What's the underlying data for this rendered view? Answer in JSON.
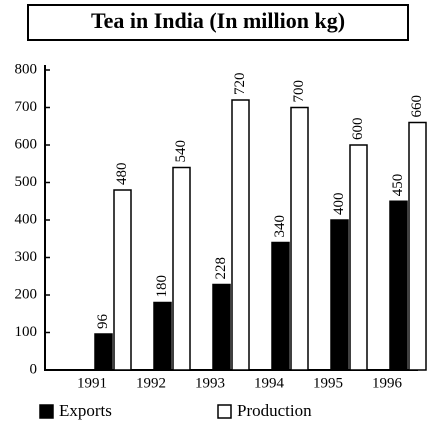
{
  "chart_data": {
    "type": "bar",
    "title": "Tea in India (In million kg)",
    "categories": [
      "1991",
      "1992",
      "1993",
      "1994",
      "1995",
      "1996"
    ],
    "series": [
      {
        "name": "Exports",
        "color": "#000000",
        "values": [
          96,
          180,
          228,
          340,
          400,
          450
        ]
      },
      {
        "name": "Production",
        "color": "#ffffff",
        "values": [
          480,
          540,
          720,
          700,
          600,
          660
        ]
      }
    ],
    "ylim": [
      0,
      800
    ],
    "yticks": [
      0,
      100,
      200,
      300,
      400,
      500,
      600,
      700,
      800
    ],
    "grid": false,
    "legend": "bottom"
  }
}
